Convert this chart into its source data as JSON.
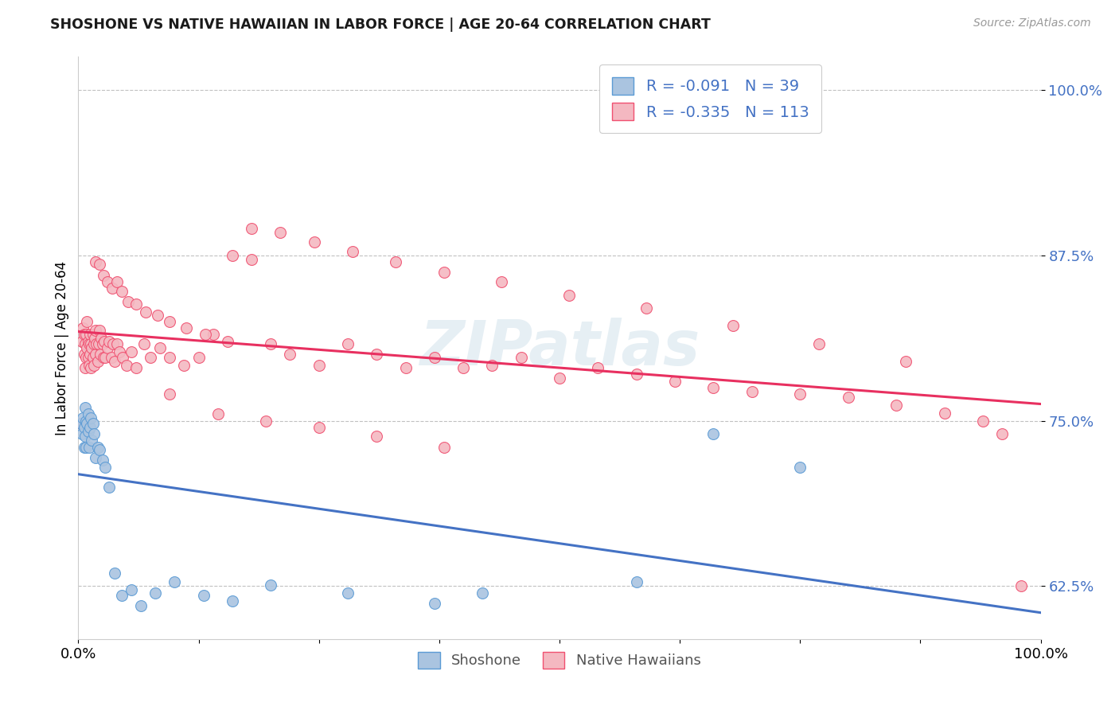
{
  "title": "SHOSHONE VS NATIVE HAWAIIAN IN LABOR FORCE | AGE 20-64 CORRELATION CHART",
  "source": "Source: ZipAtlas.com",
  "ylabel": "In Labor Force | Age 20-64",
  "yticks": [
    0.625,
    0.75,
    0.875,
    1.0
  ],
  "ytick_labels": [
    "62.5%",
    "75.0%",
    "87.5%",
    "100.0%"
  ],
  "background_color": "#ffffff",
  "shoshone_color": "#aac4e0",
  "shoshone_edge_color": "#5b9bd5",
  "native_hawaiian_color": "#f4b8c1",
  "native_hawaiian_edge_color": "#f05070",
  "shoshone_line_color": "#4472c4",
  "native_hawaiian_line_color": "#e83060",
  "legend_text_color": "#4472c4",
  "tick_color": "#4472c4",
  "watermark": "ZIPatlas",
  "legend_blue_r": "R = -0.091",
  "legend_blue_n": "N = 39",
  "legend_pink_r": "R = -0.335",
  "legend_pink_n": "N = 113",
  "shoshone_x": [
    0.003,
    0.004,
    0.005,
    0.006,
    0.006,
    0.007,
    0.007,
    0.008,
    0.008,
    0.009,
    0.01,
    0.01,
    0.011,
    0.012,
    0.013,
    0.014,
    0.015,
    0.016,
    0.018,
    0.02,
    0.022,
    0.025,
    0.028,
    0.032,
    0.038,
    0.045,
    0.055,
    0.065,
    0.08,
    0.1,
    0.13,
    0.16,
    0.2,
    0.28,
    0.37,
    0.42,
    0.58,
    0.66,
    0.75
  ],
  "shoshone_y": [
    0.748,
    0.74,
    0.752,
    0.745,
    0.73,
    0.738,
    0.76,
    0.75,
    0.73,
    0.748,
    0.742,
    0.755,
    0.73,
    0.745,
    0.752,
    0.735,
    0.748,
    0.74,
    0.722,
    0.73,
    0.728,
    0.72,
    0.715,
    0.7,
    0.635,
    0.618,
    0.622,
    0.61,
    0.62,
    0.628,
    0.618,
    0.614,
    0.626,
    0.62,
    0.612,
    0.62,
    0.628,
    0.74,
    0.715
  ],
  "native_hawaiian_x": [
    0.003,
    0.004,
    0.005,
    0.006,
    0.006,
    0.007,
    0.007,
    0.008,
    0.008,
    0.009,
    0.009,
    0.01,
    0.01,
    0.011,
    0.011,
    0.012,
    0.012,
    0.013,
    0.013,
    0.014,
    0.015,
    0.015,
    0.016,
    0.016,
    0.017,
    0.018,
    0.018,
    0.019,
    0.02,
    0.021,
    0.022,
    0.023,
    0.024,
    0.025,
    0.026,
    0.027,
    0.028,
    0.03,
    0.032,
    0.034,
    0.036,
    0.038,
    0.04,
    0.043,
    0.046,
    0.05,
    0.055,
    0.06,
    0.068,
    0.075,
    0.085,
    0.095,
    0.11,
    0.125,
    0.14,
    0.16,
    0.18,
    0.2,
    0.22,
    0.25,
    0.28,
    0.31,
    0.34,
    0.37,
    0.4,
    0.43,
    0.46,
    0.5,
    0.54,
    0.58,
    0.62,
    0.66,
    0.7,
    0.75,
    0.8,
    0.85,
    0.9,
    0.94,
    0.96,
    0.98,
    0.018,
    0.022,
    0.026,
    0.03,
    0.035,
    0.04,
    0.045,
    0.052,
    0.06,
    0.07,
    0.082,
    0.095,
    0.112,
    0.132,
    0.155,
    0.18,
    0.21,
    0.245,
    0.285,
    0.33,
    0.38,
    0.44,
    0.51,
    0.59,
    0.68,
    0.77,
    0.86,
    0.095,
    0.145,
    0.195,
    0.25,
    0.31,
    0.38
  ],
  "native_hawaiian_y": [
    0.748,
    0.81,
    0.82,
    0.8,
    0.815,
    0.808,
    0.79,
    0.815,
    0.798,
    0.825,
    0.805,
    0.81,
    0.798,
    0.808,
    0.792,
    0.815,
    0.8,
    0.808,
    0.79,
    0.805,
    0.815,
    0.798,
    0.808,
    0.792,
    0.812,
    0.8,
    0.818,
    0.808,
    0.795,
    0.808,
    0.818,
    0.8,
    0.812,
    0.808,
    0.798,
    0.81,
    0.798,
    0.805,
    0.81,
    0.798,
    0.808,
    0.795,
    0.808,
    0.802,
    0.798,
    0.792,
    0.802,
    0.79,
    0.808,
    0.798,
    0.805,
    0.798,
    0.792,
    0.798,
    0.815,
    0.875,
    0.872,
    0.808,
    0.8,
    0.792,
    0.808,
    0.8,
    0.79,
    0.798,
    0.79,
    0.792,
    0.798,
    0.782,
    0.79,
    0.785,
    0.78,
    0.775,
    0.772,
    0.77,
    0.768,
    0.762,
    0.756,
    0.75,
    0.74,
    0.625,
    0.87,
    0.868,
    0.86,
    0.855,
    0.85,
    0.855,
    0.848,
    0.84,
    0.838,
    0.832,
    0.83,
    0.825,
    0.82,
    0.815,
    0.81,
    0.895,
    0.892,
    0.885,
    0.878,
    0.87,
    0.862,
    0.855,
    0.845,
    0.835,
    0.822,
    0.808,
    0.795,
    0.77,
    0.755,
    0.75,
    0.745,
    0.738,
    0.73
  ]
}
